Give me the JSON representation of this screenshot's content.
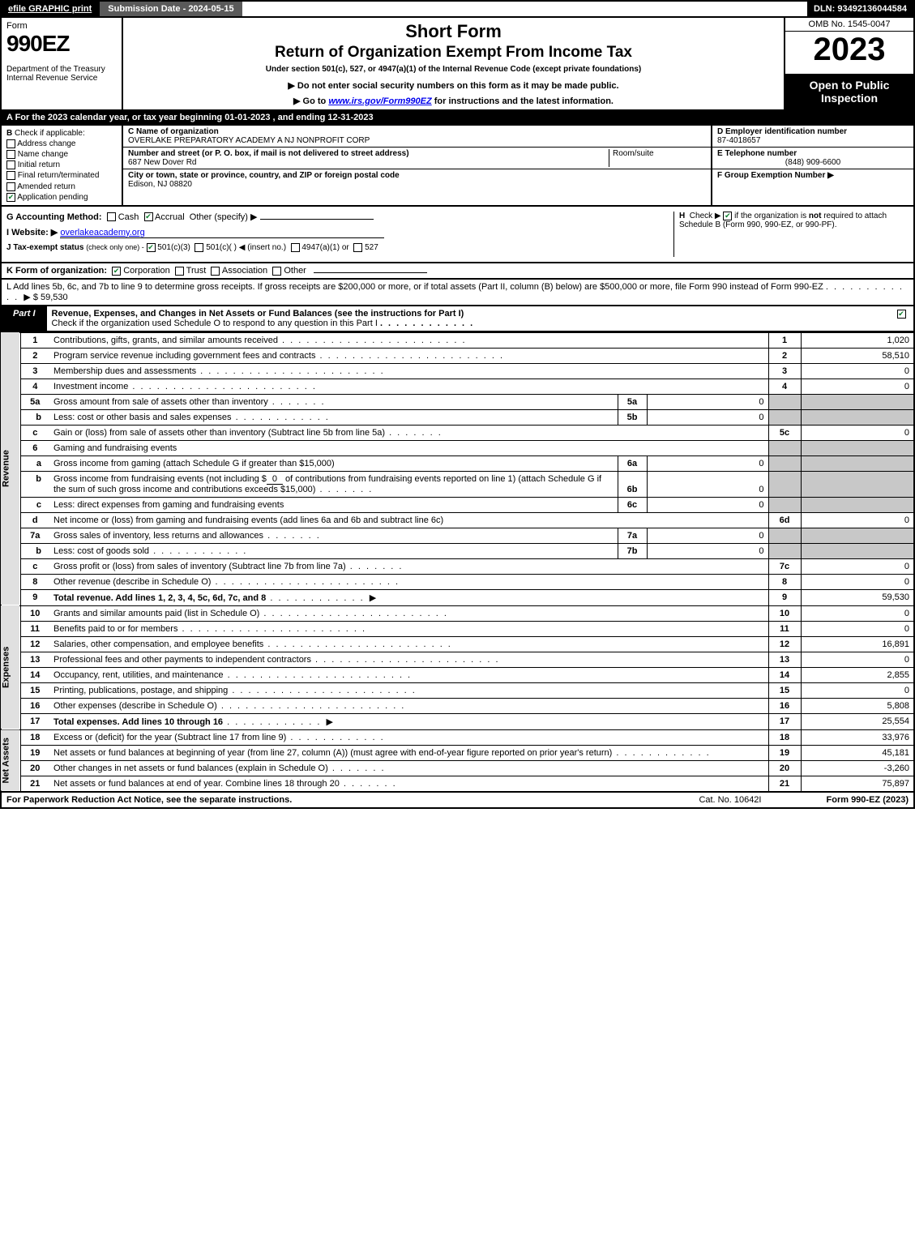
{
  "topbar": {
    "efile": "efile GRAPHIC print",
    "submission": "Submission Date - 2024-05-15",
    "dln": "DLN: 93492136044584"
  },
  "header": {
    "form": "Form",
    "formno": "990EZ",
    "dept": "Department of the Treasury\nInternal Revenue Service",
    "short_form": "Short Form",
    "title": "Return of Organization Exempt From Income Tax",
    "sub1": "Under section 501(c), 527, or 4947(a)(1) of the Internal Revenue Code (except private foundations)",
    "sub2": "▶ Do not enter social security numbers on this form as it may be made public.",
    "sub3_pre": "▶ Go to ",
    "sub3_link": "www.irs.gov/Form990EZ",
    "sub3_post": " for instructions and the latest information.",
    "omb": "OMB No. 1545-0047",
    "year": "2023",
    "badge": "Open to Public Inspection"
  },
  "rowA": "A  For the 2023 calendar year, or tax year beginning 01-01-2023 , and ending 12-31-2023",
  "B": {
    "label": "Check if applicable:",
    "items": [
      "Address change",
      "Name change",
      "Initial return",
      "Final return/terminated",
      "Amended return",
      "Application pending"
    ],
    "checked": [
      false,
      false,
      false,
      false,
      false,
      true
    ]
  },
  "C": {
    "name_label": "C Name of organization",
    "name": "OVERLAKE PREPARATORY ACADEMY A NJ NONPROFIT CORP",
    "street_label": "Number and street (or P. O. box, if mail is not delivered to street address)",
    "street": "687 New Dover Rd",
    "room_label": "Room/suite",
    "city_label": "City or town, state or province, country, and ZIP or foreign postal code",
    "city": "Edison, NJ  08820"
  },
  "D": {
    "label": "D Employer identification number",
    "value": "87-4018657"
  },
  "E": {
    "label": "E Telephone number",
    "value": "(848) 909-6600"
  },
  "F": {
    "label": "F Group Exemption Number  ▶",
    "value": ""
  },
  "G": {
    "label": "G Accounting Method:",
    "cash": "Cash",
    "accrual": "Accrual",
    "other": "Other (specify) ▶",
    "accrual_checked": true
  },
  "H": {
    "text1": "Check ▶ ",
    "text2": " if the organization is ",
    "not": "not",
    "text3": " required to attach Schedule B (Form 990, 990-EZ, or 990-PF).",
    "checked": true
  },
  "I": {
    "label": "I Website: ▶",
    "value": "overlakeacademy.org"
  },
  "J": {
    "label": "J Tax-exempt status",
    "sub": "(check only one) -",
    "opt1": "501(c)(3)",
    "opt2": "501(c)(  ) ◀ (insert no.)",
    "opt3": "4947(a)(1) or",
    "opt4": "527",
    "checked": 0
  },
  "K": {
    "label": "K Form of organization:",
    "opts": [
      "Corporation",
      "Trust",
      "Association",
      "Other"
    ],
    "checked": 0
  },
  "L": {
    "text": "L Add lines 5b, 6c, and 7b to line 9 to determine gross receipts. If gross receipts are $200,000 or more, or if total assets (Part II, column (B) below) are $500,000 or more, file Form 990 instead of Form 990-EZ",
    "arrow": "▶",
    "value": "$ 59,530"
  },
  "part1": {
    "tab": "Part I",
    "title": "Revenue, Expenses, and Changes in Net Assets or Fund Balances (see the instructions for Part I)",
    "check_text": "Check if the organization used Schedule O to respond to any question in this Part I",
    "checked": true
  },
  "sections": {
    "revenue": "Revenue",
    "expenses": "Expenses",
    "netassets": "Net Assets"
  },
  "lines": {
    "l1": {
      "no": "1",
      "desc": "Contributions, gifts, grants, and similar amounts received",
      "rn": "1",
      "val": "1,020"
    },
    "l2": {
      "no": "2",
      "desc": "Program service revenue including government fees and contracts",
      "rn": "2",
      "val": "58,510"
    },
    "l3": {
      "no": "3",
      "desc": "Membership dues and assessments",
      "rn": "3",
      "val": "0"
    },
    "l4": {
      "no": "4",
      "desc": "Investment income",
      "rn": "4",
      "val": "0"
    },
    "l5a": {
      "no": "5a",
      "desc": "Gross amount from sale of assets other than inventory",
      "mid": "5a",
      "midval": "0"
    },
    "l5b": {
      "no": "b",
      "desc": "Less: cost or other basis and sales expenses",
      "mid": "5b",
      "midval": "0"
    },
    "l5c": {
      "no": "c",
      "desc": "Gain or (loss) from sale of assets other than inventory (Subtract line 5b from line 5a)",
      "rn": "5c",
      "val": "0"
    },
    "l6": {
      "no": "6",
      "desc": "Gaming and fundraising events"
    },
    "l6a": {
      "no": "a",
      "desc": "Gross income from gaming (attach Schedule G if greater than $15,000)",
      "mid": "6a",
      "midval": "0"
    },
    "l6b": {
      "no": "b",
      "desc1": "Gross income from fundraising events (not including $",
      "fill": "0",
      "desc2": " of contributions from fundraising events reported on line 1) (attach Schedule G if the sum of such gross income and contributions exceeds $15,000)",
      "mid": "6b",
      "midval": "0"
    },
    "l6c": {
      "no": "c",
      "desc": "Less: direct expenses from gaming and fundraising events",
      "mid": "6c",
      "midval": "0"
    },
    "l6d": {
      "no": "d",
      "desc": "Net income or (loss) from gaming and fundraising events (add lines 6a and 6b and subtract line 6c)",
      "rn": "6d",
      "val": "0"
    },
    "l7a": {
      "no": "7a",
      "desc": "Gross sales of inventory, less returns and allowances",
      "mid": "7a",
      "midval": "0"
    },
    "l7b": {
      "no": "b",
      "desc": "Less: cost of goods sold",
      "mid": "7b",
      "midval": "0"
    },
    "l7c": {
      "no": "c",
      "desc": "Gross profit or (loss) from sales of inventory (Subtract line 7b from line 7a)",
      "rn": "7c",
      "val": "0"
    },
    "l8": {
      "no": "8",
      "desc": "Other revenue (describe in Schedule O)",
      "rn": "8",
      "val": "0"
    },
    "l9": {
      "no": "9",
      "desc": "Total revenue.",
      "desc2": " Add lines 1, 2, 3, 4, 5c, 6d, 7c, and 8",
      "rn": "9",
      "val": "59,530",
      "bold": true
    },
    "l10": {
      "no": "10",
      "desc": "Grants and similar amounts paid (list in Schedule O)",
      "rn": "10",
      "val": "0"
    },
    "l11": {
      "no": "11",
      "desc": "Benefits paid to or for members",
      "rn": "11",
      "val": "0"
    },
    "l12": {
      "no": "12",
      "desc": "Salaries, other compensation, and employee benefits",
      "rn": "12",
      "val": "16,891"
    },
    "l13": {
      "no": "13",
      "desc": "Professional fees and other payments to independent contractors",
      "rn": "13",
      "val": "0"
    },
    "l14": {
      "no": "14",
      "desc": "Occupancy, rent, utilities, and maintenance",
      "rn": "14",
      "val": "2,855"
    },
    "l15": {
      "no": "15",
      "desc": "Printing, publications, postage, and shipping",
      "rn": "15",
      "val": "0"
    },
    "l16": {
      "no": "16",
      "desc": "Other expenses (describe in Schedule O)",
      "rn": "16",
      "val": "5,808"
    },
    "l17": {
      "no": "17",
      "desc": "Total expenses.",
      "desc2": " Add lines 10 through 16",
      "rn": "17",
      "val": "25,554",
      "bold": true
    },
    "l18": {
      "no": "18",
      "desc": "Excess or (deficit) for the year (Subtract line 17 from line 9)",
      "rn": "18",
      "val": "33,976"
    },
    "l19": {
      "no": "19",
      "desc": "Net assets or fund balances at beginning of year (from line 27, column (A)) (must agree with end-of-year figure reported on prior year's return)",
      "rn": "19",
      "val": "45,181"
    },
    "l20": {
      "no": "20",
      "desc": "Other changes in net assets or fund balances (explain in Schedule O)",
      "rn": "20",
      "val": "-3,260"
    },
    "l21": {
      "no": "21",
      "desc": "Net assets or fund balances at end of year. Combine lines 18 through 20",
      "rn": "21",
      "val": "75,897"
    }
  },
  "footer": {
    "left": "For Paperwork Reduction Act Notice, see the separate instructions.",
    "mid": "Cat. No. 10642I",
    "right": "Form 990-EZ (2023)"
  },
  "colors": {
    "black": "#000000",
    "white": "#ffffff",
    "grey": "#c8c8c8",
    "lightgrey": "#e0e0e0",
    "darkgrey": "#5a5a5a",
    "green": "#0a7d2a"
  }
}
